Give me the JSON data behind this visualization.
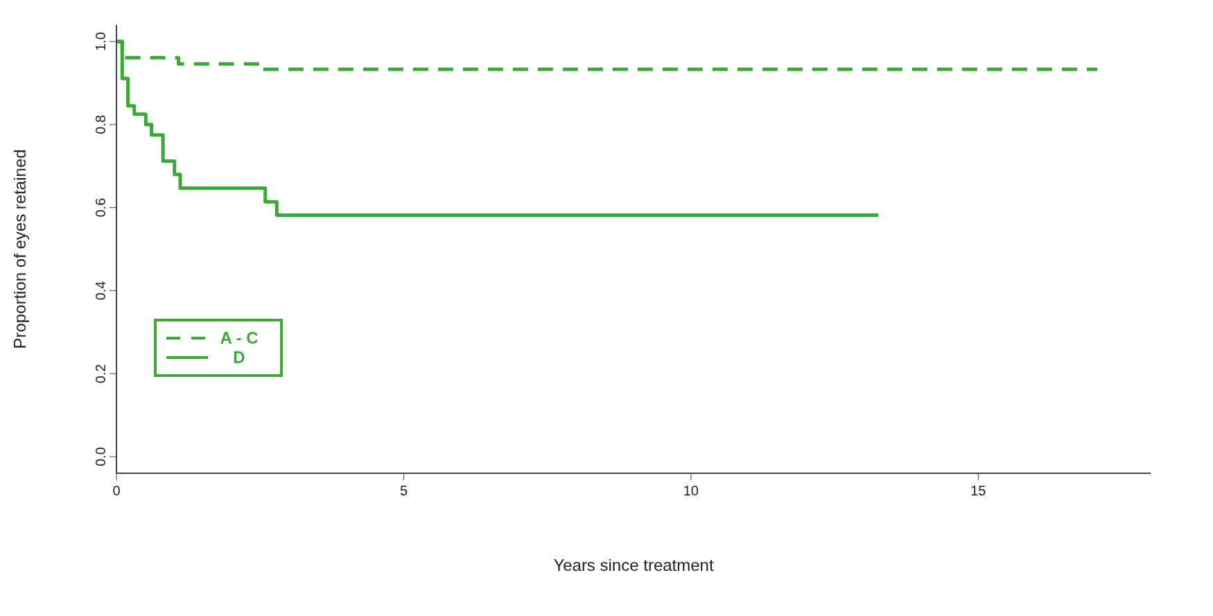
{
  "chart_data": {
    "type": "step",
    "xlabel": "Years since treatment",
    "ylabel": "Proportion of eyes retained",
    "xlim": [
      0,
      18
    ],
    "xticks": [
      0,
      5,
      10,
      15
    ],
    "ylim": [
      -0.04,
      1.04
    ],
    "yticks": [
      {
        "value": 0,
        "label": "0.0"
      },
      {
        "value": 0.2,
        "label": "0.2"
      },
      {
        "value": 0.4,
        "label": "0.4"
      },
      {
        "value": 0.6,
        "label": "0.6"
      },
      {
        "value": 0.8,
        "label": "0.8"
      },
      {
        "value": 1,
        "label": "1.0"
      }
    ],
    "grid": false,
    "legend": "left",
    "marker": "none",
    "series": [
      {
        "name": "A - C",
        "color": "#3aaa35",
        "line_style": "dashed",
        "x": [
          0,
          0.1,
          1.08,
          2.55,
          17.07
        ],
        "values": [
          1,
          0.961,
          0.946,
          0.933,
          0.933
        ]
      },
      {
        "name": "D",
        "color": "#3aaa35",
        "line_style": "solid",
        "x": [
          0,
          0.1,
          0.2,
          0.31,
          0.51,
          0.61,
          0.81,
          1.01,
          1.11,
          2.59,
          2.79,
          13.26
        ],
        "values": [
          1,
          0.911,
          0.845,
          0.825,
          0.8,
          0.775,
          0.712,
          0.68,
          0.647,
          0.614,
          0.582,
          0.582
        ]
      }
    ]
  }
}
